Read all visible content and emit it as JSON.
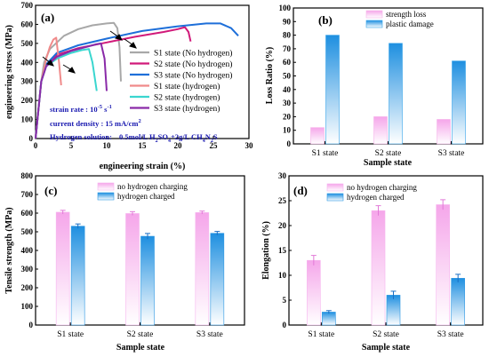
{
  "colors": {
    "s1_no": "#a8a8a8",
    "s2_no": "#d11a7a",
    "s3_no": "#1e6fd9",
    "s1_h": "#f08a8a",
    "s2_h": "#3ad6cf",
    "s3_h": "#8a2aa8",
    "strength_loss": "#f6b3ea",
    "plastic_damage": "#36a3ea",
    "no_h_bar": "#f7b5ee",
    "h_bar": "#2c97e3",
    "annotation_text": "#1a1ab0"
  },
  "chart_data": [
    {
      "id": "a",
      "panel_label": "(a)",
      "type": "line",
      "xlabel": "engineering strain (%)",
      "ylabel": "engineering stress (MPa)",
      "xlim": [
        0,
        30
      ],
      "ylim": [
        0,
        700
      ],
      "xticks": [
        0,
        5,
        10,
        15,
        20,
        25,
        30
      ],
      "yticks": [
        0,
        100,
        200,
        300,
        400,
        500,
        600,
        700
      ],
      "legend_position": "right",
      "series": [
        {
          "name": "S1 state (No hydrogen)",
          "color_key": "s1_no",
          "x": [
            0,
            0.8,
            1.2,
            2,
            4,
            6,
            8,
            10,
            11,
            11.5,
            11.8,
            12
          ],
          "y": [
            0,
            300,
            400,
            470,
            540,
            575,
            595,
            605,
            608,
            580,
            480,
            300
          ]
        },
        {
          "name": "S2 state (No hydrogen)",
          "color_key": "s2_no",
          "x": [
            0,
            0.8,
            1.5,
            3,
            6,
            10,
            14,
            18,
            20,
            21,
            21.5,
            21.8
          ],
          "y": [
            0,
            300,
            390,
            440,
            475,
            505,
            535,
            560,
            575,
            585,
            560,
            510
          ]
        },
        {
          "name": "S3 state (No hydrogen)",
          "color_key": "s3_no",
          "x": [
            0,
            0.8,
            1.5,
            3,
            6,
            10,
            15,
            20,
            24,
            26,
            27.5,
            28.5
          ],
          "y": [
            0,
            300,
            390,
            450,
            490,
            525,
            565,
            590,
            605,
            605,
            580,
            540
          ]
        },
        {
          "name": "S1 state (hydrogen)",
          "color_key": "s1_h",
          "x": [
            0,
            0.8,
            1.5,
            2,
            2.5,
            2.9,
            3.3,
            3.6
          ],
          "y": [
            0,
            300,
            420,
            480,
            520,
            530,
            400,
            280
          ]
        },
        {
          "name": "S2 state (hydrogen)",
          "color_key": "s2_h",
          "x": [
            0,
            0.8,
            1.5,
            3,
            5,
            6.5,
            7.5,
            8,
            8.6
          ],
          "y": [
            0,
            300,
            380,
            420,
            450,
            465,
            470,
            400,
            250
          ]
        },
        {
          "name": "S3 state (hydrogen)",
          "color_key": "s3_h",
          "x": [
            0,
            0.8,
            1.5,
            3,
            5,
            7,
            8.5,
            9.2,
            9.7,
            10
          ],
          "y": [
            0,
            300,
            380,
            430,
            460,
            480,
            495,
            500,
            420,
            250
          ]
        }
      ],
      "annotations": {
        "strain_rate": "strain rate :  10",
        "strain_rate_sup": "-5",
        "strain_rate_unit": " s",
        "strain_rate_unit_sup": "-1",
        "current_density": "current density :   15 mA/cm",
        "current_density_sup": "2",
        "solution_label": "Hydrogen solution:",
        "solution_a": "0.5mol/L H",
        "solution_a_sub1": "2",
        "solution_a_mid": "SO",
        "solution_a_sub2": "4",
        "solution_b": "+2g/L CH",
        "solution_b_sub1": "4",
        "solution_b_mid": "N",
        "solution_b_sub2": "2",
        "solution_b_end": "S"
      }
    },
    {
      "id": "b",
      "panel_label": "(b)",
      "type": "bar",
      "xlabel": "Sample state",
      "ylabel": "Loss Ratio (%)",
      "ylim": [
        0,
        100
      ],
      "yticks": [
        0,
        10,
        20,
        30,
        40,
        50,
        60,
        70,
        80,
        90,
        100
      ],
      "categories": [
        "S1 state",
        "S2 state",
        "S3 state"
      ],
      "legend_position": "top",
      "series": [
        {
          "name": "strength loss",
          "color_key": "strength_loss",
          "values": [
            12,
            20,
            18
          ]
        },
        {
          "name": "plastic damage",
          "color_key": "plastic_damage",
          "values": [
            80,
            74,
            61
          ]
        }
      ]
    },
    {
      "id": "c",
      "panel_label": "(c)",
      "type": "bar",
      "xlabel": "Sample state",
      "ylabel": "Tensile strength (MPa)",
      "ylim": [
        0,
        800
      ],
      "yticks": [
        0,
        100,
        200,
        300,
        400,
        500,
        600,
        700,
        800
      ],
      "categories": [
        "S1 state",
        "S2 state",
        "S3 state"
      ],
      "legend_position": "top",
      "series": [
        {
          "name": "no hydrogen charging",
          "color_key": "no_h_bar",
          "values": [
            605,
            598,
            603
          ],
          "errors": [
            10,
            10,
            8
          ]
        },
        {
          "name": "hydrogen charged",
          "color_key": "h_bar",
          "values": [
            530,
            476,
            492
          ],
          "errors": [
            12,
            15,
            10
          ]
        }
      ]
    },
    {
      "id": "d",
      "panel_label": "(d)",
      "type": "bar",
      "xlabel": "Sample state",
      "ylabel": "Elongation  (%)",
      "ylim": [
        0,
        30
      ],
      "yticks": [
        0,
        5,
        10,
        15,
        20,
        25,
        30
      ],
      "categories": [
        "S1 state",
        "S2 state",
        "S3 state"
      ],
      "legend_position": "top",
      "series": [
        {
          "name": "no hydrogen charging",
          "color_key": "no_h_bar",
          "values": [
            13,
            23,
            24.2
          ],
          "errors": [
            1,
            1,
            1
          ]
        },
        {
          "name": "hydrogen charged",
          "color_key": "h_bar",
          "values": [
            2.6,
            6,
            9.4
          ],
          "errors": [
            0.3,
            0.8,
            0.8
          ]
        }
      ]
    }
  ]
}
